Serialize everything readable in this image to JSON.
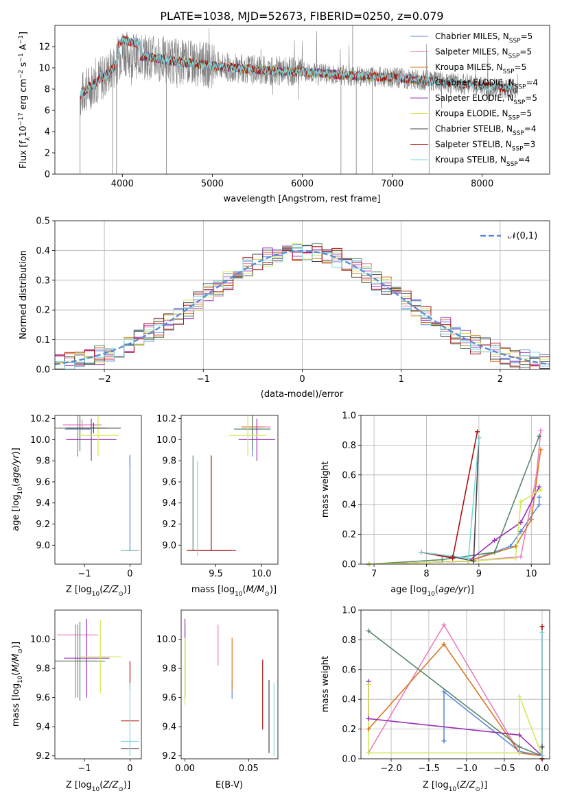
{
  "figure_title": "PLATE=1038, MJD=52673, FIBERID=0250, z=0.079",
  "colors": {
    "Chabrier MILES": "#5b8ad6",
    "Salpeter MILES": "#e67fbf",
    "Kroupa MILES": "#d9771f",
    "Chabrier ELODIE": "#57876a",
    "Salpeter ELODIE": "#9a2fb5",
    "Kroupa ELODIE": "#d4e85a",
    "Chabrier STELIB": "#444444",
    "Salpeter STELIB": "#b01010",
    "Kroupa STELIB": "#7fd7dc",
    "data": "#808080",
    "normal": "#5b8ad6"
  },
  "chart_data": [
    {
      "id": "spectrum",
      "type": "line",
      "xlabel": "wavelength [Angstrom, rest frame]",
      "ylabel": "Flux [f_λ 10^-17 erg cm^-2 s^-1 A^-1]",
      "xlim": [
        3250,
        8750
      ],
      "ylim": [
        0,
        14
      ],
      "xticks": [
        4000,
        5000,
        6000,
        7000,
        8000
      ],
      "yticks": [
        0,
        2,
        4,
        6,
        8,
        10,
        12
      ],
      "legend_placement": "right",
      "legend": [
        {
          "base": "Chabrier MILES, N",
          "sub": "SSP",
          "tail": "=5"
        },
        {
          "base": "Salpeter MILES, N",
          "sub": "SSP",
          "tail": "=5"
        },
        {
          "base": "Kroupa MILES, N",
          "sub": "SSP",
          "tail": "=5"
        },
        {
          "base": "Chabrier ELODIE, N",
          "sub": "SSP",
          "tail": "=4"
        },
        {
          "base": "Salpeter ELODIE, N",
          "sub": "SSP",
          "tail": "=5"
        },
        {
          "base": "Kroupa ELODIE, N",
          "sub": "SSP",
          "tail": "=5"
        },
        {
          "base": "Chabrier STELIB, N",
          "sub": "SSP",
          "tail": "=4"
        },
        {
          "base": "Salpeter STELIB, N",
          "sub": "SSP",
          "tail": "=3"
        },
        {
          "base": "Kroupa STELIB, N",
          "sub": "SSP",
          "tail": "=4"
        }
      ],
      "continuum": [
        [
          3530,
          7.3
        ],
        [
          3600,
          8.0
        ],
        [
          3700,
          8.6
        ],
        [
          3800,
          9.2
        ],
        [
          3900,
          10.0
        ],
        [
          4000,
          11.5
        ],
        [
          4100,
          11.2
        ],
        [
          4300,
          11.0
        ],
        [
          4600,
          10.6
        ],
        [
          5000,
          10.2
        ],
        [
          5500,
          9.8
        ],
        [
          6000,
          9.6
        ],
        [
          6500,
          9.3
        ],
        [
          7000,
          9.1
        ],
        [
          7500,
          8.7
        ],
        [
          8000,
          8.3
        ],
        [
          8400,
          8.0
        ]
      ],
      "data_dips": [
        3530,
        3890,
        3935,
        4490,
        6430,
        6600,
        6780,
        7410
      ],
      "model_ranges": {
        "MILES": [
          3540,
          7400
        ],
        "ELODIE": [
          4000,
          6800
        ],
        "STELIB": [
          3530,
          8400
        ]
      }
    },
    {
      "id": "residuals",
      "type": "histogram",
      "xlabel": "(data-model)/error",
      "ylabel": "Normed distribution",
      "xlim": [
        -2.5,
        2.5
      ],
      "ylim": [
        0,
        0.5
      ],
      "xticks": [
        -2,
        -1,
        0,
        1,
        2
      ],
      "yticks": [
        0.0,
        0.1,
        0.2,
        0.3,
        0.4,
        0.5
      ],
      "grid": true,
      "legend_placement": "top-right",
      "normal_label": "𝒩(0,1)",
      "bin_width": 0.1
    },
    {
      "id": "age_vs_Z",
      "type": "errorbar",
      "xlabel": "Z [log10(Z/Z⊙)]",
      "ylabel": "age [log10(age/yr)]",
      "xlim": [
        -1.65,
        0.25
      ],
      "ylim": [
        8.82,
        10.23
      ],
      "xticks": [
        -1,
        0
      ],
      "yticks": [
        9.0,
        9.2,
        9.4,
        9.6,
        9.8,
        10.0,
        10.2
      ],
      "points": [
        {
          "model": "Chabrier MILES",
          "x": -1.15,
          "xerr": 0.28,
          "y": 10.1,
          "yerr": 0.26
        },
        {
          "model": "Salpeter MILES",
          "x": -1.05,
          "xerr": 0.42,
          "y": 10.14,
          "yerr": 0.05
        },
        {
          "model": "Kroupa MILES",
          "x": -1.1,
          "xerr": 0.5,
          "y": 10.11,
          "yerr": 0.1
        },
        {
          "model": "Chabrier ELODIE",
          "x": -1.1,
          "xerr": 0.6,
          "y": 10.11,
          "yerr": 0.22
        },
        {
          "model": "Salpeter ELODIE",
          "x": -0.85,
          "xerr": 0.55,
          "y": 10.0,
          "yerr": 0.2
        },
        {
          "model": "Kroupa ELODIE",
          "x": -0.7,
          "xerr": 0.45,
          "y": 10.04,
          "yerr": 0.2
        },
        {
          "model": "Chabrier STELIB",
          "x": -0.8,
          "xerr": 0.6,
          "y": 10.11,
          "yerr": 0.05
        },
        {
          "model": "Salpeter STELIB",
          "x": 0.0,
          "xerr": 0.2,
          "y": 8.95,
          "yerr": 0.0
        },
        {
          "model": "Salpeter STELIB",
          "x": 0.0,
          "xerr": 0.0,
          "y": 9.8,
          "yerr": 0.05
        },
        {
          "model": "Kroupa STELIB",
          "x": 0.0,
          "xerr": 0.2,
          "y": 8.95,
          "yerr": 0.0
        },
        {
          "model": "Kroupa STELIB",
          "x": 0.0,
          "xerr": 0.0,
          "y": 9.4,
          "yerr": 0.46
        },
        {
          "model": "Chabrier MILES",
          "x": 0.0,
          "xerr": 0.0,
          "y": 9.4,
          "yerr": 0.45
        }
      ]
    },
    {
      "id": "age_vs_mass",
      "type": "errorbar",
      "xlabel": "mass [log10(M/M⊙)]",
      "ylabel": "",
      "xlim": [
        9.12,
        10.18
      ],
      "ylim": [
        8.82,
        10.23
      ],
      "xticks": [
        9.5,
        10.0
      ],
      "yticks": [
        9.0,
        9.2,
        9.4,
        9.6,
        9.8,
        10.0,
        10.2
      ],
      "points": [
        {
          "model": "Chabrier MILES",
          "x": 9.9,
          "xerr": 0.1,
          "y": 10.1,
          "yerr": 0.26
        },
        {
          "model": "Salpeter MILES",
          "x": 9.95,
          "xerr": 0.15,
          "y": 10.12,
          "yerr": 0.05
        },
        {
          "model": "Kroupa MILES",
          "x": 9.9,
          "xerr": 0.12,
          "y": 10.12,
          "yerr": 0.1
        },
        {
          "model": "Chabrier ELODIE",
          "x": 9.9,
          "xerr": 0.2,
          "y": 10.1,
          "yerr": 0.2
        },
        {
          "model": "Salpeter ELODIE",
          "x": 9.95,
          "xerr": 0.2,
          "y": 10.0,
          "yerr": 0.2
        },
        {
          "model": "Kroupa ELODIE",
          "x": 9.85,
          "xerr": 0.2,
          "y": 10.04,
          "yerr": 0.2
        },
        {
          "model": "Chabrier STELIB",
          "x": 9.45,
          "xerr": 0.22,
          "y": 8.95,
          "yerr": 0.0
        },
        {
          "model": "Salpeter STELIB",
          "x": 9.45,
          "xerr": 0.27,
          "y": 8.95,
          "yerr": 0.0
        },
        {
          "model": "Salpeter STELIB",
          "x": 9.45,
          "xerr": 0.0,
          "y": 9.4,
          "yerr": 0.45
        },
        {
          "model": "Kroupa STELIB",
          "x": 9.3,
          "xerr": 0.0,
          "y": 9.35,
          "yerr": 0.45
        },
        {
          "model": "Chabrier ELODIE",
          "x": 9.25,
          "xerr": 0.0,
          "y": 9.4,
          "yerr": 0.45
        }
      ]
    },
    {
      "id": "weight_vs_age",
      "type": "line",
      "xlabel": "age [log10(age/yr)]",
      "ylabel": "mass weight",
      "xlim": [
        6.75,
        10.35
      ],
      "ylim": [
        0,
        1.0
      ],
      "xticks": [
        7,
        8,
        9,
        10
      ],
      "yticks": [
        0.0,
        0.2,
        0.4,
        0.6,
        0.8,
        1.0
      ],
      "grid": true,
      "series": [
        {
          "model": "Chabrier MILES",
          "x": [
            6.9,
            8.8,
            9.6,
            9.8,
            10.15,
            10.15
          ],
          "y": [
            0.0,
            0.02,
            0.12,
            0.22,
            0.4,
            0.45
          ]
        },
        {
          "model": "Salpeter MILES",
          "x": [
            6.9,
            8.8,
            9.8,
            10.1,
            10.18
          ],
          "y": [
            0.0,
            0.02,
            0.05,
            0.6,
            0.9
          ]
        },
        {
          "model": "Kroupa MILES",
          "x": [
            6.9,
            8.8,
            9.7,
            10.0,
            10.18
          ],
          "y": [
            0.0,
            0.02,
            0.12,
            0.3,
            0.77
          ]
        },
        {
          "model": "Chabrier ELODIE",
          "x": [
            6.9,
            8.3,
            9.3,
            10.15
          ],
          "y": [
            0.0,
            0.03,
            0.08,
            0.86
          ]
        },
        {
          "model": "Salpeter ELODIE",
          "x": [
            6.9,
            8.8,
            9.3,
            9.8,
            10.15
          ],
          "y": [
            0.0,
            0.02,
            0.16,
            0.28,
            0.52
          ]
        },
        {
          "model": "Kroupa ELODIE",
          "x": [
            6.9,
            8.8,
            9.7,
            9.8,
            10.18
          ],
          "y": [
            0.0,
            0.02,
            0.04,
            0.42,
            0.5
          ]
        },
        {
          "model": "Chabrier STELIB",
          "x": [
            7.9,
            8.5,
            8.9,
            9.0
          ],
          "y": [
            0.08,
            0.05,
            0.02,
            0.85
          ]
        },
        {
          "model": "Salpeter STELIB",
          "x": [
            7.9,
            8.5,
            8.97
          ],
          "y": [
            0.08,
            0.04,
            0.89
          ]
        },
        {
          "model": "Kroupa STELIB",
          "x": [
            7.9,
            8.8,
            9.0
          ],
          "y": [
            0.08,
            0.04,
            0.85
          ]
        }
      ]
    },
    {
      "id": "mass_vs_Z",
      "type": "errorbar",
      "xlabel": "Z [log10(Z/Z⊙)]",
      "ylabel": "mass [log10(M/M⊙)]",
      "xlim": [
        -1.65,
        0.25
      ],
      "ylim": [
        9.18,
        10.2
      ],
      "xticks": [
        -1,
        0
      ],
      "yticks": [
        9.2,
        9.4,
        9.6,
        9.8,
        10.0
      ],
      "points": [
        {
          "model": "Chabrier MILES",
          "x": -1.15,
          "xerr": 0.48,
          "y": 9.85,
          "yerr": 0.25
        },
        {
          "model": "Salpeter MILES",
          "x": -1.15,
          "xerr": 0.45,
          "y": 10.03,
          "yerr": 0.0
        },
        {
          "model": "Kroupa MILES",
          "x": -1.2,
          "xerr": 0.45,
          "y": 9.85,
          "yerr": 0.25
        },
        {
          "model": "Chabrier ELODIE",
          "x": -1.1,
          "xerr": 0.55,
          "y": 9.85,
          "yerr": 0.27
        },
        {
          "model": "Salpeter ELODIE",
          "x": -0.95,
          "xerr": 0.5,
          "y": 9.87,
          "yerr": 0.27
        },
        {
          "model": "Kroupa ELODIE",
          "x": -0.65,
          "xerr": 0.45,
          "y": 9.88,
          "yerr": 0.25
        },
        {
          "model": "Chabrier STELIB",
          "x": 0.0,
          "xerr": 0.2,
          "y": 9.25,
          "yerr": 0.0
        },
        {
          "model": "Salpeter STELIB",
          "x": 0.0,
          "xerr": 0.2,
          "y": 9.44,
          "yerr": 0.0
        },
        {
          "model": "Salpeter STELIB",
          "x": 0.0,
          "xerr": 0.0,
          "y": 9.75,
          "yerr": 0.1
        },
        {
          "model": "Kroupa STELIB",
          "x": 0.0,
          "xerr": 0.2,
          "y": 9.3,
          "yerr": 0.0
        },
        {
          "model": "Kroupa STELIB",
          "x": 0.0,
          "xerr": 0.0,
          "y": 9.45,
          "yerr": 0.25
        }
      ]
    },
    {
      "id": "mass_vs_EBV",
      "type": "errorbar",
      "xlabel": "E(B-V)",
      "ylabel": "",
      "xlim": [
        -0.003,
        0.073
      ],
      "ylim": [
        9.18,
        10.2
      ],
      "xticks": [
        0.0,
        0.05
      ],
      "yticks": [
        9.2,
        9.4,
        9.6,
        9.8,
        10.0
      ],
      "points": [
        {
          "model": "Chabrier MILES",
          "x": 0.037,
          "xerr": 0.0,
          "y": 9.65,
          "yerr": 0.06
        },
        {
          "model": "Salpeter MILES",
          "x": 0.026,
          "xerr": 0.0,
          "y": 9.96,
          "yerr": 0.14
        },
        {
          "model": "Kroupa MILES",
          "x": 0.037,
          "xerr": 0.0,
          "y": 9.83,
          "yerr": 0.18
        },
        {
          "model": "Chabrier ELODIE",
          "x": 0.0,
          "xerr": 0.0,
          "y": 9.85,
          "yerr": 0.25
        },
        {
          "model": "Salpeter ELODIE",
          "x": 0.0,
          "xerr": 0.0,
          "y": 9.87,
          "yerr": 0.27
        },
        {
          "model": "Kroupa ELODIE",
          "x": 0.0,
          "xerr": 0.0,
          "y": 9.78,
          "yerr": 0.23
        },
        {
          "model": "Chabrier STELIB",
          "x": 0.066,
          "xerr": 0.0,
          "y": 9.47,
          "yerr": 0.25
        },
        {
          "model": "Salpeter STELIB",
          "x": 0.061,
          "xerr": 0.0,
          "y": 9.62,
          "yerr": 0.24
        },
        {
          "model": "Kroupa STELIB",
          "x": 0.07,
          "xerr": 0.0,
          "y": 9.45,
          "yerr": 0.25
        }
      ]
    },
    {
      "id": "weight_vs_Z",
      "type": "line",
      "xlabel": "Z [log10(Z/Z⊙)]",
      "ylabel": "mass weight",
      "xlim": [
        -2.4,
        0.1
      ],
      "ylim": [
        0,
        1.0
      ],
      "xticks": [
        -2.0,
        -1.5,
        -1.0,
        -0.5,
        0.0
      ],
      "yticks": [
        0.0,
        0.2,
        0.4,
        0.6,
        0.8,
        1.0
      ],
      "grid": true,
      "series": [
        {
          "model": "Chabrier MILES",
          "x": [
            -1.3,
            -1.3,
            -0.3,
            0.0
          ],
          "y": [
            0.12,
            0.45,
            0.05,
            0.02
          ]
        },
        {
          "model": "Salpeter MILES",
          "x": [
            -2.3,
            -1.3,
            -0.3,
            0.0
          ],
          "y": [
            0.04,
            0.9,
            0.04,
            0.02
          ]
        },
        {
          "model": "Kroupa MILES",
          "x": [
            -2.3,
            -1.3,
            -0.3,
            0.0
          ],
          "y": [
            0.2,
            0.77,
            0.04,
            0.02
          ]
        },
        {
          "model": "Chabrier ELODIE",
          "x": [
            -2.3,
            -0.3,
            0.0
          ],
          "y": [
            0.86,
            0.08,
            0.02
          ]
        },
        {
          "model": "Salpeter ELODIE",
          "x": [
            -2.3,
            -2.3,
            -0.3,
            0.0
          ],
          "y": [
            0.52,
            0.27,
            0.16,
            0.02
          ]
        },
        {
          "model": "Kroupa ELODIE",
          "x": [
            -2.3,
            -2.3,
            -0.3,
            -0.3,
            0.0
          ],
          "y": [
            0.5,
            0.04,
            0.04,
            0.42,
            0.02
          ]
        },
        {
          "model": "Chabrier STELIB",
          "x": [
            0.0,
            0.0
          ],
          "y": [
            0.08,
            0.0
          ]
        },
        {
          "model": "Salpeter STELIB",
          "x": [
            0.0,
            0.0
          ],
          "y": [
            0.89,
            0.0
          ]
        },
        {
          "model": "Kroupa STELIB",
          "x": [
            0.0,
            0.0
          ],
          "y": [
            0.85,
            0.02
          ]
        }
      ]
    }
  ]
}
